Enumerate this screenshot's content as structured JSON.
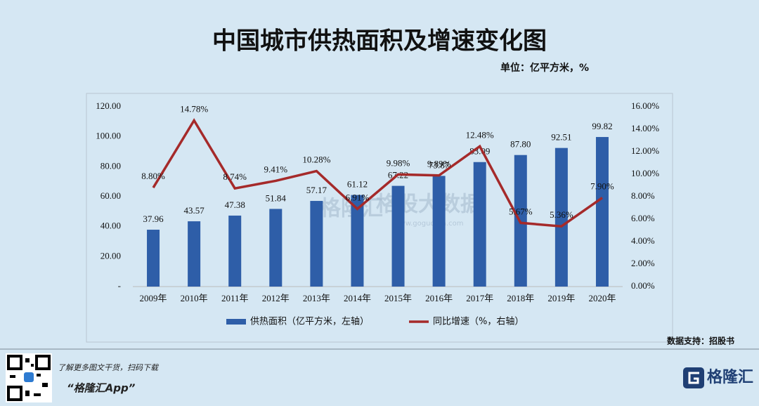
{
  "chart_data": {
    "type": "combo",
    "title": "中国城市供热面积及增速变化图",
    "subtitle": "单位：亿平方米，%",
    "source": "数据支持：招股书",
    "categories": [
      "2009年",
      "2010年",
      "2011年",
      "2012年",
      "2013年",
      "2014年",
      "2015年",
      "2016年",
      "2017年",
      "2018年",
      "2019年",
      "2020年"
    ],
    "series": [
      {
        "name": "供热面积（亿平方米，左轴）",
        "type": "bar",
        "color": "#2e5ea8",
        "values": [
          37.96,
          43.57,
          47.38,
          51.84,
          57.17,
          61.12,
          67.22,
          73.87,
          83.09,
          87.8,
          92.51,
          99.82
        ],
        "value_labels": [
          "37.96",
          "43.57",
          "47.38",
          "51.84",
          "57.17",
          "61.12",
          "67.22",
          "73.87",
          "83.09",
          "87.80",
          "92.51",
          "99.82"
        ]
      },
      {
        "name": "同比增速（%，右轴）",
        "type": "line",
        "axis": "y2",
        "color": "#a52a2a",
        "values": [
          8.8,
          14.78,
          8.74,
          9.41,
          10.28,
          6.91,
          9.98,
          9.89,
          12.48,
          5.67,
          5.36,
          7.9
        ],
        "value_labels": [
          "8.80%",
          "14.78%",
          "8.74%",
          "9.41%",
          "10.28%",
          "6.91%",
          "9.98%",
          "9.89%",
          "12.48%",
          "5.67%",
          "5.36%",
          "7.90%"
        ]
      }
    ],
    "ylim": [
      0,
      120
    ],
    "yticks": [
      {
        "value": 0,
        "label": "-"
      },
      {
        "value": 20,
        "label": "20.00"
      },
      {
        "value": 40,
        "label": "40.00"
      },
      {
        "value": 60,
        "label": "60.00"
      },
      {
        "value": 80,
        "label": "80.00"
      },
      {
        "value": 100,
        "label": "100.00"
      },
      {
        "value": 120,
        "label": "120.00"
      }
    ],
    "y2lim": [
      0,
      16
    ],
    "y2ticks": [
      {
        "value": 0,
        "label": "0.00%"
      },
      {
        "value": 2,
        "label": "2.00%"
      },
      {
        "value": 4,
        "label": "4.00%"
      },
      {
        "value": 6,
        "label": "6.00%"
      },
      {
        "value": 8,
        "label": "8.00%"
      },
      {
        "value": 10,
        "label": "10.00%"
      },
      {
        "value": 12,
        "label": "12.00%"
      },
      {
        "value": 14,
        "label": "14.00%"
      },
      {
        "value": 16,
        "label": "16.00%"
      }
    ],
    "legend": "bottom",
    "watermark": [
      "格隆汇",
      "格股大数据",
      "www.gogudata.com"
    ]
  },
  "footer": {
    "prompt": "了解更多图文干货，扫码下载",
    "app": "“格隆汇App”",
    "logo": "格隆汇"
  }
}
